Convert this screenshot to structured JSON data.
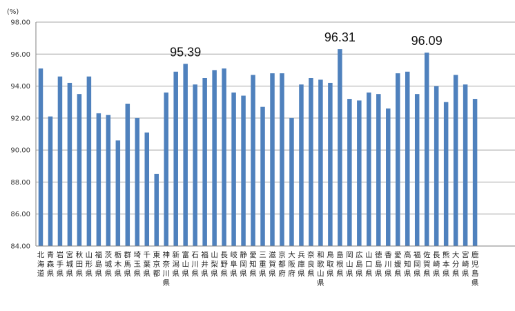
{
  "chart_data": {
    "type": "bar",
    "unit": "(%)",
    "ylim": [
      84,
      98
    ],
    "yticks": [
      "84.00",
      "86.00",
      "88.00",
      "90.00",
      "92.00",
      "94.00",
      "96.00",
      "98.00"
    ],
    "grid": true,
    "bar_color": "#4F81BD",
    "categories": [
      "北海道",
      "青森県",
      "岩手県",
      "宮城県",
      "秋田県",
      "山形県",
      "福島県",
      "茨城県",
      "栃木県",
      "群馬県",
      "埼玉県",
      "千葉県",
      "東京都",
      "神奈川県",
      "新潟県",
      "富山県",
      "石川県",
      "福井県",
      "山梨県",
      "長野県",
      "岐阜県",
      "静岡県",
      "愛知県",
      "三重県",
      "滋賀県",
      "京都府",
      "大阪府",
      "兵庫県",
      "奈良県",
      "和歌山県",
      "鳥取県",
      "島根県",
      "岡山県",
      "広島県",
      "山口県",
      "徳島県",
      "香川県",
      "愛媛県",
      "高知県",
      "福岡県",
      "佐賀県",
      "長崎県",
      "熊本県",
      "大分県",
      "宮崎県",
      "鹿児島県"
    ],
    "values": [
      95.1,
      92.1,
      94.6,
      94.2,
      93.5,
      94.6,
      92.3,
      92.2,
      90.6,
      92.9,
      92.0,
      91.1,
      88.5,
      93.6,
      94.9,
      95.39,
      94.1,
      94.5,
      95.0,
      95.1,
      93.6,
      93.4,
      94.7,
      92.7,
      94.8,
      94.8,
      92.0,
      94.1,
      94.5,
      94.4,
      94.2,
      96.31,
      93.2,
      93.1,
      93.6,
      93.5,
      92.6,
      94.8,
      94.9,
      93.5,
      96.09,
      94.0,
      93.0,
      94.7,
      94.1,
      93.2
    ],
    "annotations": [
      {
        "index": 15,
        "label": "95.39"
      },
      {
        "index": 31,
        "label": "96.31"
      },
      {
        "index": 40,
        "label": "96.09"
      }
    ]
  }
}
